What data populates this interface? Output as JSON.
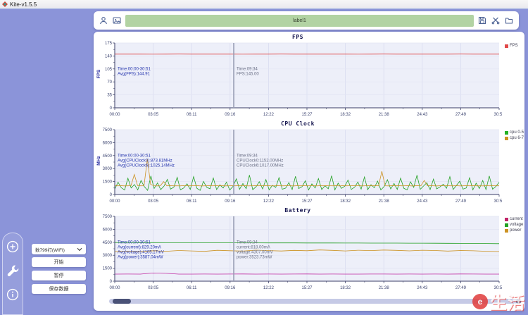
{
  "window": {
    "title": "Kite-v1.5.5"
  },
  "toolbar": {
    "label_value": "label1",
    "left_icons": [
      "person-icon",
      "screenshot-icon"
    ],
    "right_icons": [
      "save-icon",
      "scissors-icon",
      "folder-icon"
    ]
  },
  "sidebar": {
    "rail_icons": [
      "add-icon",
      "wrench-icon",
      "info-icon"
    ],
    "device_value": "数799打(WIFI)",
    "start_label": "开始",
    "pause_label": "暂停",
    "save_label": "保存数据"
  },
  "watermark": {
    "text": "生活"
  },
  "chart_data": [
    {
      "type": "line",
      "title": "FPS",
      "ylabel": "FPS",
      "ylim": [
        0,
        175
      ],
      "yticks": [
        0,
        35,
        70,
        105,
        140,
        175
      ],
      "xticks": [
        "00:00",
        "03:05",
        "06:11",
        "09:16",
        "12:22",
        "15:27",
        "18:32",
        "21:38",
        "24:43",
        "27:49",
        "30:54"
      ],
      "grid": true,
      "legend_position": "right",
      "legend": [
        {
          "label": "FPS",
          "color": "#e04848"
        }
      ],
      "series": [
        {
          "name": "FPS",
          "color": "#e04848",
          "values": [
            144.9,
            145,
            145,
            144.8,
            145,
            145.1,
            145,
            144.9,
            145,
            145,
            144.7,
            145,
            145,
            145.1,
            145,
            144.9,
            145,
            145,
            145,
            144.8,
            145,
            145.1,
            145,
            145,
            144.9,
            145,
            145,
            145.2,
            145,
            144.9,
            145
          ]
        }
      ],
      "annotation": [
        "Time:00:00-30:51",
        "Avg(FPS):144.91"
      ],
      "cursor": {
        "time": "09:34",
        "tooltip": [
          "Time:09:34",
          "FPS:145.00"
        ]
      }
    },
    {
      "type": "line",
      "title": "CPU Clock",
      "ylabel": "MHz",
      "ylim": [
        0,
        7500
      ],
      "yticks": [
        0,
        1500,
        3000,
        4500,
        6000,
        7500
      ],
      "xticks": [
        "00:00",
        "03:05",
        "06:11",
        "09:16",
        "12:22",
        "15:27",
        "18:32",
        "21:38",
        "24:43",
        "27:49",
        "30:54"
      ],
      "grid": true,
      "legend_position": "right",
      "legend": [
        {
          "label": "cpu 0-5",
          "color": "#22b122"
        },
        {
          "label": "cpu 6-7",
          "color": "#cc9222"
        }
      ],
      "series": [
        {
          "name": "cpu 0-5",
          "color": "#22a122",
          "values": [
            630,
            1420,
            780,
            520,
            1880,
            760,
            1150,
            540,
            1620,
            910,
            480,
            2150,
            700,
            1340,
            560,
            980,
            1750,
            620,
            860,
            1980,
            540,
            760,
            1240,
            590,
            2060,
            720,
            480,
            1520,
            830,
            660,
            1900,
            570,
            1110,
            760,
            1430,
            520,
            940,
            1810,
            600,
            1270,
            680,
            2240,
            560,
            890,
            1480,
            640,
            1730,
            540,
            1060,
            820,
            1950,
            610,
            740,
            1380,
            570,
            2100,
            690,
            900,
            1590,
            530,
            1230,
            760,
            1840,
            580,
            1010,
            660,
            2180,
            540,
            1320,
            710,
            960,
            1660,
            590,
            850,
            1440,
            620,
            2020,
            560,
            1130,
            780,
            1550,
            530,
            920,
            1710,
            640,
            1280,
            590,
            1890,
            710,
            540,
            1470,
            830,
            2230,
            600,
            990,
            1360,
            560,
            1780,
            650,
            880,
            1190,
            720,
            2070,
            580,
            1040,
            1530,
            620,
            760,
            1930,
            540,
            1310,
            690,
            1620,
            570,
            2140,
            610,
            930,
            1400
          ]
        },
        {
          "name": "cpu 6-7",
          "color": "#cc9222",
          "values": [
            1010,
            1000,
            1015,
            995,
            1005,
            1020,
            2320,
            1030,
            1005,
            1010,
            4120,
            1180,
            1010,
            995,
            1015,
            1490,
            1005,
            1020,
            1000,
            1010,
            995,
            1025,
            1010,
            1000,
            1015,
            1030,
            1005,
            995,
            1010,
            1020,
            1000,
            1015,
            1005,
            1025,
            995,
            1010,
            1030,
            1000,
            1015,
            1005,
            1020,
            995,
            1010,
            1025,
            1000,
            1015,
            1005,
            1030,
            995,
            1010,
            1020,
            1005,
            1000,
            1025,
            1010,
            995,
            1015,
            1005,
            1020,
            1000,
            1010,
            1030,
            995,
            1015,
            1005,
            1025,
            1010,
            1000,
            1020,
            995,
            1015,
            1005,
            1010,
            1030,
            1000,
            1025,
            995,
            1010,
            1015,
            1005,
            1020,
            1000,
            2680,
            1010,
            995,
            1025,
            1005,
            1015,
            1000,
            1010,
            1020,
            995,
            1005,
            1030,
            1010,
            1620,
            1000,
            1015,
            1005,
            995,
            1020,
            1010,
            1025,
            1000,
            1005,
            1015,
            995,
            1010,
            1020,
            1005,
            1030,
            1000,
            1010,
            995,
            1015,
            1005,
            1025,
            1010,
            1000
          ]
        }
      ],
      "annotation": [
        "Time:00:00-30:51",
        "Avg(CPUClock0):873.81MHz",
        "Avg(CPUClock6):1025.14MHz"
      ],
      "cursor": {
        "time": "09:34",
        "tooltip": [
          "Time:09:34",
          "CPUClock0:1152.00MHz",
          "CPUClock6:1017.00MHz"
        ]
      }
    },
    {
      "type": "line",
      "title": "Battery",
      "ylabel": "",
      "ylim": [
        0,
        7500
      ],
      "yticks": [
        0,
        1500,
        3000,
        4500,
        6000,
        7500
      ],
      "xticks": [
        "00:00",
        "03:05",
        "06:11",
        "09:16",
        "12:22",
        "15:27",
        "18:32",
        "21:38",
        "24:43",
        "27:49",
        "30:54"
      ],
      "grid": true,
      "legend_position": "right",
      "legend": [
        {
          "label": "current",
          "color": "#c02468"
        },
        {
          "label": "voltage",
          "color": "#22a122"
        },
        {
          "label": "power",
          "color": "#cc9222"
        }
      ],
      "series": [
        {
          "name": "current",
          "color": "#c028a0",
          "values": [
            812,
            820,
            816,
            948,
            905,
            818,
            812,
            822,
            816,
            820,
            828,
            815,
            822,
            812,
            820,
            828,
            816,
            824,
            818,
            812,
            826,
            820,
            815,
            823,
            812,
            820,
            816,
            828,
            820,
            812,
            816
          ]
        },
        {
          "name": "voltage",
          "color": "#22a122",
          "values": [
            4470,
            4465,
            4460,
            4462,
            4455,
            4450,
            4452,
            4445,
            4440,
            4442,
            4438,
            4432,
            4430,
            4428,
            4425,
            4420,
            4422,
            4415,
            4410,
            4412,
            4405,
            4400,
            4402,
            4395,
            4390,
            4385,
            4380,
            4372,
            4362,
            4350,
            4340
          ]
        },
        {
          "name": "power",
          "color": "#cc9222",
          "values": [
            3420,
            3470,
            3410,
            3520,
            3460,
            3550,
            3500,
            3450,
            3570,
            3520,
            3480,
            3590,
            3540,
            3490,
            3560,
            3520,
            3610,
            3560,
            3500,
            3575,
            3535,
            3605,
            3560,
            3505,
            3580,
            3545,
            3480,
            3550,
            3515,
            3460,
            3430
          ]
        }
      ],
      "annotation": [
        "Time:00:00-30:51",
        "Avg(current):829.20mA",
        "Avg(voltage):4105.17mV",
        "Avg(power):3587.04mW"
      ],
      "cursor": {
        "time": "09:34",
        "tooltip": [
          "Time:09:34",
          "current:818.00mA",
          "voltage:4307.00mV",
          "power:3523.73mW"
        ]
      }
    }
  ]
}
